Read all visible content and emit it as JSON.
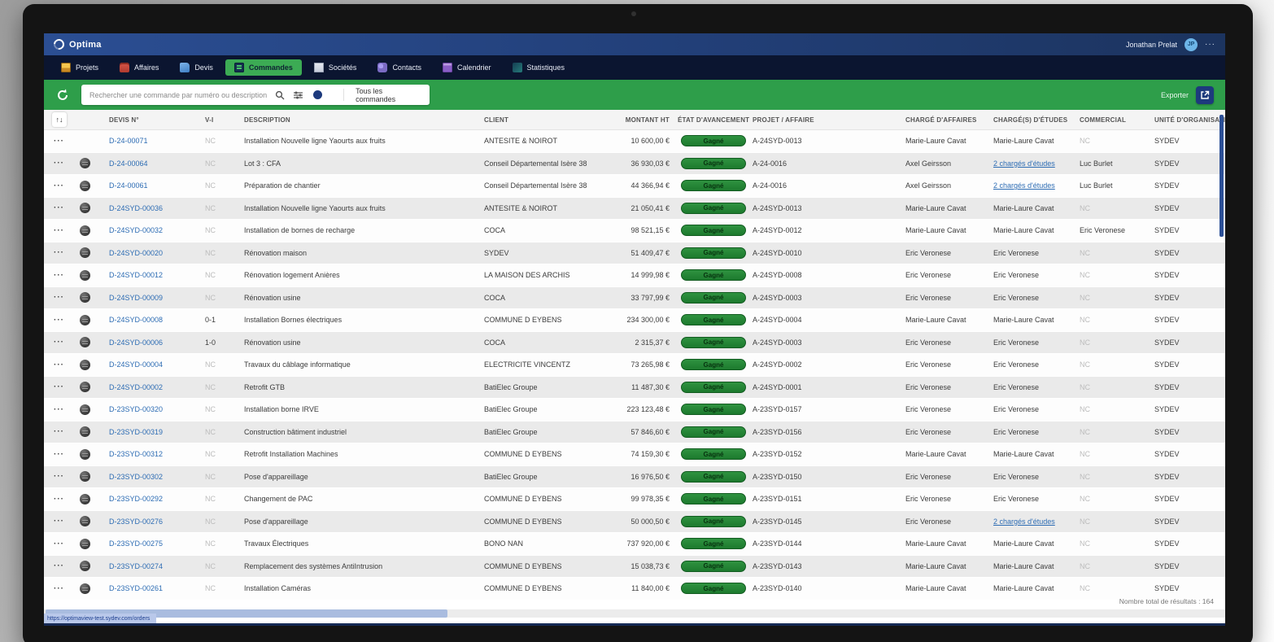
{
  "window": {
    "app_name": "Optima",
    "user": "Jonathan Prelat",
    "user_initials": "JP",
    "menu_dots": "···"
  },
  "nav": {
    "tabs": [
      {
        "id": "projets",
        "label": "Projets",
        "active": false
      },
      {
        "id": "affaires",
        "label": "Affaires",
        "active": false
      },
      {
        "id": "devis",
        "label": "Devis",
        "active": false
      },
      {
        "id": "commandes",
        "label": "Commandes",
        "active": true
      },
      {
        "id": "societes",
        "label": "Sociétés",
        "active": false
      },
      {
        "id": "contacts",
        "label": "Contacts",
        "active": false
      },
      {
        "id": "calendrier",
        "label": "Calendrier",
        "active": false
      },
      {
        "id": "statistiques",
        "label": "Statistiques",
        "active": false
      }
    ]
  },
  "toolbar": {
    "search_placeholder": "Rechercher une commande par numéro ou description",
    "scope_label": "Tous les commandes",
    "export_label": "Exporter"
  },
  "table": {
    "sort_icon": "↑↓",
    "columns": [
      {
        "key": "devis",
        "label": "DEVIS N°"
      },
      {
        "key": "vi",
        "label": "V-I"
      },
      {
        "key": "desc",
        "label": "DESCRIPTION"
      },
      {
        "key": "client",
        "label": "CLIENT"
      },
      {
        "key": "montant",
        "label": "MONTANT HT"
      },
      {
        "key": "etat",
        "label": "ÉTAT D'AVANCEMENT"
      },
      {
        "key": "affaire",
        "label": "PROJET / AFFAIRE"
      },
      {
        "key": "ca",
        "label": "CHARGÉ D'AFFAIRES"
      },
      {
        "key": "ce",
        "label": "CHARGÉ(S) D'ÉTUDES"
      },
      {
        "key": "com",
        "label": "COMMERCIAL"
      },
      {
        "key": "unite",
        "label": "UNITÉ D'ORGANISATION"
      }
    ],
    "rows": [
      {
        "has_icon": false,
        "devis": "D-24-00071",
        "vi": "NC",
        "desc": "Installation Nouvelle ligne Yaourts aux fruits",
        "client": "ANTESITE & NOIROT",
        "montant": "10 600,00 €",
        "etat": "Gagné",
        "affaire": "A-24SYD-0013",
        "ca": "Marie-Laure Cavat",
        "ce": "Marie-Laure Cavat",
        "ce_link": false,
        "com": "NC",
        "unite": "SYDEV"
      },
      {
        "has_icon": true,
        "devis": "D-24-00064",
        "vi": "NC",
        "desc": "Lot 3 : CFA",
        "client": "Conseil Départemental Isère 38",
        "montant": "36 930,03 €",
        "etat": "Gagné",
        "affaire": "A-24-0016",
        "ca": "Axel Geirsson",
        "ce": "2 chargés d'études",
        "ce_link": true,
        "com": "Luc Burlet",
        "unite": "SYDEV"
      },
      {
        "has_icon": true,
        "devis": "D-24-00061",
        "vi": "NC",
        "desc": "Préparation de chantier",
        "client": "Conseil Départemental Isère 38",
        "montant": "44 366,94 €",
        "etat": "Gagné",
        "affaire": "A-24-0016",
        "ca": "Axel Geirsson",
        "ce": "2 chargés d'études",
        "ce_link": true,
        "com": "Luc Burlet",
        "unite": "SYDEV"
      },
      {
        "has_icon": true,
        "devis": "D-24SYD-00036",
        "vi": "NC",
        "desc": "Installation Nouvelle ligne Yaourts aux fruits",
        "client": "ANTESITE & NOIROT",
        "montant": "21 050,41 €",
        "etat": "Gagné",
        "affaire": "A-24SYD-0013",
        "ca": "Marie-Laure Cavat",
        "ce": "Marie-Laure Cavat",
        "ce_link": false,
        "com": "NC",
        "unite": "SYDEV"
      },
      {
        "has_icon": true,
        "devis": "D-24SYD-00032",
        "vi": "NC",
        "desc": "Installation de bornes de recharge",
        "client": "COCA",
        "montant": "98 521,15 €",
        "etat": "Gagné",
        "affaire": "A-24SYD-0012",
        "ca": "Marie-Laure Cavat",
        "ce": "Marie-Laure Cavat",
        "ce_link": false,
        "com": "Eric Veronese",
        "unite": "SYDEV"
      },
      {
        "has_icon": true,
        "devis": "D-24SYD-00020",
        "vi": "NC",
        "desc": "Rénovation maison",
        "client": "SYDEV",
        "montant": "51 409,47 €",
        "etat": "Gagné",
        "affaire": "A-24SYD-0010",
        "ca": "Eric Veronese",
        "ce": "Eric Veronese",
        "ce_link": false,
        "com": "NC",
        "unite": "SYDEV"
      },
      {
        "has_icon": true,
        "devis": "D-24SYD-00012",
        "vi": "NC",
        "desc": "Rénovation logement Anières",
        "client": "LA MAISON DES ARCHIS",
        "montant": "14 999,98 €",
        "etat": "Gagné",
        "affaire": "A-24SYD-0008",
        "ca": "Eric Veronese",
        "ce": "Eric Veronese",
        "ce_link": false,
        "com": "NC",
        "unite": "SYDEV"
      },
      {
        "has_icon": true,
        "devis": "D-24SYD-00009",
        "vi": "NC",
        "desc": "Rénovation usine",
        "client": "COCA",
        "montant": "33 797,99 €",
        "etat": "Gagné",
        "affaire": "A-24SYD-0003",
        "ca": "Eric Veronese",
        "ce": "Eric Veronese",
        "ce_link": false,
        "com": "NC",
        "unite": "SYDEV"
      },
      {
        "has_icon": true,
        "devis": "D-24SYD-00008",
        "vi": "0-1",
        "desc": "Installation Bornes électriques",
        "client": "COMMUNE D EYBENS",
        "montant": "234 300,00 €",
        "etat": "Gagné",
        "affaire": "A-24SYD-0004",
        "ca": "Marie-Laure Cavat",
        "ce": "Marie-Laure Cavat",
        "ce_link": false,
        "com": "NC",
        "unite": "SYDEV"
      },
      {
        "has_icon": true,
        "devis": "D-24SYD-00006",
        "vi": "1-0",
        "desc": "Rénovation usine",
        "client": "COCA",
        "montant": "2 315,37 €",
        "etat": "Gagné",
        "affaire": "A-24SYD-0003",
        "ca": "Eric Veronese",
        "ce": "Eric Veronese",
        "ce_link": false,
        "com": "NC",
        "unite": "SYDEV"
      },
      {
        "has_icon": true,
        "devis": "D-24SYD-00004",
        "vi": "NC",
        "desc": "Travaux du câblage informatique",
        "client": "ELECTRICITE VINCENTZ",
        "montant": "73 265,98 €",
        "etat": "Gagné",
        "affaire": "A-24SYD-0002",
        "ca": "Eric Veronese",
        "ce": "Eric Veronese",
        "ce_link": false,
        "com": "NC",
        "unite": "SYDEV"
      },
      {
        "has_icon": true,
        "devis": "D-24SYD-00002",
        "vi": "NC",
        "desc": "Retrofit GTB",
        "client": "BatiElec Groupe",
        "montant": "11 487,30 €",
        "etat": "Gagné",
        "affaire": "A-24SYD-0001",
        "ca": "Eric Veronese",
        "ce": "Eric Veronese",
        "ce_link": false,
        "com": "NC",
        "unite": "SYDEV"
      },
      {
        "has_icon": true,
        "devis": "D-23SYD-00320",
        "vi": "NC",
        "desc": "Installation borne IRVE",
        "client": "BatiElec Groupe",
        "montant": "223 123,48 €",
        "etat": "Gagné",
        "affaire": "A-23SYD-0157",
        "ca": "Eric Veronese",
        "ce": "Eric Veronese",
        "ce_link": false,
        "com": "NC",
        "unite": "SYDEV"
      },
      {
        "has_icon": true,
        "devis": "D-23SYD-00319",
        "vi": "NC",
        "desc": "Construction bâtiment industriel",
        "client": "BatiElec Groupe",
        "montant": "57 846,60 €",
        "etat": "Gagné",
        "affaire": "A-23SYD-0156",
        "ca": "Eric Veronese",
        "ce": "Eric Veronese",
        "ce_link": false,
        "com": "NC",
        "unite": "SYDEV"
      },
      {
        "has_icon": true,
        "devis": "D-23SYD-00312",
        "vi": "NC",
        "desc": "Retrofit Installation Machines",
        "client": "COMMUNE D EYBENS",
        "montant": "74 159,30 €",
        "etat": "Gagné",
        "affaire": "A-23SYD-0152",
        "ca": "Marie-Laure Cavat",
        "ce": "Marie-Laure Cavat",
        "ce_link": false,
        "com": "NC",
        "unite": "SYDEV"
      },
      {
        "has_icon": true,
        "devis": "D-23SYD-00302",
        "vi": "NC",
        "desc": "Pose d'appareillage",
        "client": "BatiElec Groupe",
        "montant": "16 976,50 €",
        "etat": "Gagné",
        "affaire": "A-23SYD-0150",
        "ca": "Eric Veronese",
        "ce": "Eric Veronese",
        "ce_link": false,
        "com": "NC",
        "unite": "SYDEV"
      },
      {
        "has_icon": true,
        "devis": "D-23SYD-00292",
        "vi": "NC",
        "desc": "Changement de PAC",
        "client": "COMMUNE D EYBENS",
        "montant": "99 978,35 €",
        "etat": "Gagné",
        "affaire": "A-23SYD-0151",
        "ca": "Eric Veronese",
        "ce": "Eric Veronese",
        "ce_link": false,
        "com": "NC",
        "unite": "SYDEV"
      },
      {
        "has_icon": true,
        "devis": "D-23SYD-00276",
        "vi": "NC",
        "desc": "Pose d'appareillage",
        "client": "COMMUNE D EYBENS",
        "montant": "50 000,50 €",
        "etat": "Gagné",
        "affaire": "A-23SYD-0145",
        "ca": "Eric Veronese",
        "ce": "2 chargés d'études",
        "ce_link": true,
        "com": "NC",
        "unite": "SYDEV"
      },
      {
        "has_icon": true,
        "devis": "D-23SYD-00275",
        "vi": "NC",
        "desc": "Travaux Électriques",
        "client": "BONO NAN",
        "montant": "737 920,00 €",
        "etat": "Gagné",
        "affaire": "A-23SYD-0144",
        "ca": "Marie-Laure Cavat",
        "ce": "Marie-Laure Cavat",
        "ce_link": false,
        "com": "NC",
        "unite": "SYDEV"
      },
      {
        "has_icon": true,
        "devis": "D-23SYD-00274",
        "vi": "NC",
        "desc": "Remplacement des systèmes AntiIntrusion",
        "client": "COMMUNE D EYBENS",
        "montant": "15 038,73 €",
        "etat": "Gagné",
        "affaire": "A-23SYD-0143",
        "ca": "Marie-Laure Cavat",
        "ce": "Marie-Laure Cavat",
        "ce_link": false,
        "com": "NC",
        "unite": "SYDEV"
      },
      {
        "has_icon": true,
        "devis": "D-23SYD-00261",
        "vi": "NC",
        "desc": "Installation Caméras",
        "client": "COMMUNE D EYBENS",
        "montant": "11 840,00 €",
        "etat": "Gagné",
        "affaire": "A-23SYD-0140",
        "ca": "Marie-Laure Cavat",
        "ce": "Marie-Laure Cavat",
        "ce_link": false,
        "com": "NC",
        "unite": "SYDEV"
      }
    ]
  },
  "footer": {
    "url": "https://optimaview-test.sydev.com/orders",
    "total_label": "Nombre total de résultats : 164"
  },
  "colors": {
    "titlebar_blue": "#27498a",
    "navbar_navy": "#0b1530",
    "toolbar_green": "#2e9e4a",
    "active_tab_green": "#3cab54",
    "status_pill_green": "#1e7b2e",
    "link_blue": "#2e6db4",
    "export_button_navy": "#1d3a7d"
  }
}
